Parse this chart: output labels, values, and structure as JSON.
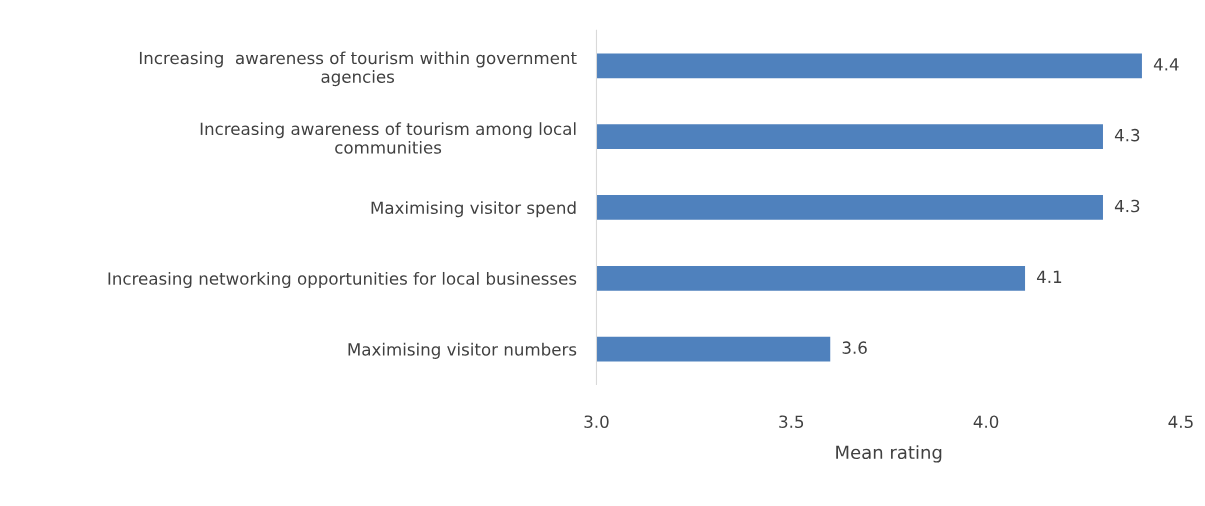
{
  "chart_data": {
    "type": "bar",
    "orientation": "horizontal",
    "xlabel": "Mean rating",
    "categories": [
      "Increasing  awareness of tourism within government\nagencies",
      "Increasing awareness of tourism among local\ncommunities",
      "Maximising visitor spend",
      "Increasing networking opportunities for local businesses",
      "Maximising visitor numbers"
    ],
    "values": [
      4.4,
      4.3,
      4.3,
      4.1,
      3.6
    ],
    "color": "#4f81bd",
    "data_labels": true,
    "xlim": [
      3.0,
      4.5
    ],
    "xticks": [
      {
        "value": 3.0,
        "label": "3.0"
      },
      {
        "value": 3.5,
        "label": "3.5"
      },
      {
        "value": 4.0,
        "label": "4.0"
      },
      {
        "value": 4.5,
        "label": "4.5"
      }
    ],
    "grid": false
  }
}
